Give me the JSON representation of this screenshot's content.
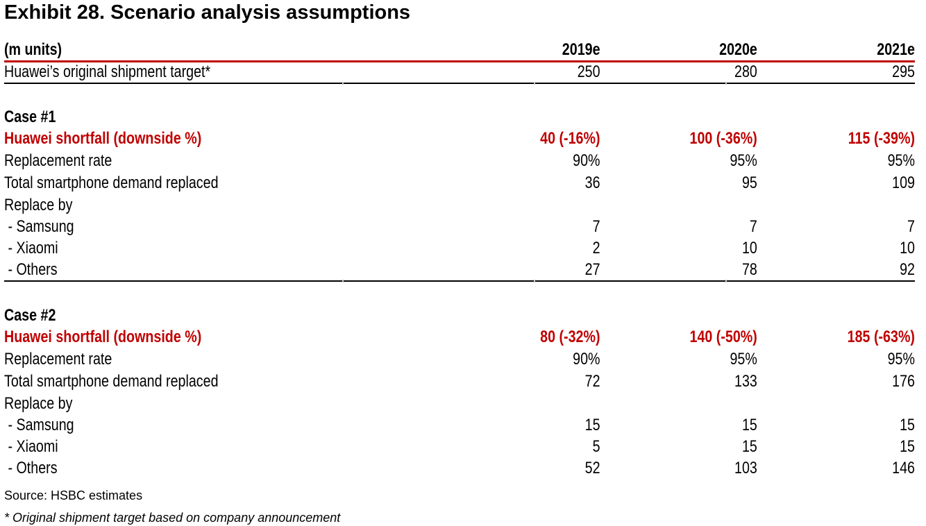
{
  "exhibit": {
    "title": "Exhibit 28. Scenario analysis assumptions"
  },
  "table": {
    "header": [
      "(m units)",
      "2019e",
      "2020e",
      "2021e"
    ],
    "target": [
      "Huawei’s original shipment target*",
      "250",
      "280",
      "295"
    ],
    "case1": {
      "heading": "Case #1",
      "rows": [
        [
          "Huawei shortfall (downside %)",
          "40 (-16%)",
          "100 (-36%)",
          "115 (-39%)"
        ],
        [
          "Replacement rate",
          "90%",
          "95%",
          "95%"
        ],
        [
          "Total smartphone demand replaced",
          "36",
          "95",
          "109"
        ],
        [
          "Replace by",
          "",
          "",
          ""
        ],
        [
          " - Samsung",
          "7",
          "7",
          "7"
        ],
        [
          " - Xiaomi",
          "2",
          "10",
          "10"
        ],
        [
          " - Others",
          "27",
          "78",
          "92"
        ]
      ]
    },
    "case2": {
      "heading": "Case #2",
      "rows": [
        [
          "Huawei shortfall (downside %)",
          "80 (-32%)",
          "140 (-50%)",
          "185 (-63%)"
        ],
        [
          "Replacement rate",
          "90%",
          "95%",
          "95%"
        ],
        [
          "Total smartphone demand replaced",
          "72",
          "133",
          "176"
        ],
        [
          "Replace by",
          "",
          "",
          ""
        ],
        [
          " - Samsung",
          "15",
          "15",
          "15"
        ],
        [
          " - Xiaomi",
          "5",
          "15",
          "15"
        ],
        [
          " - Others",
          "52",
          "103",
          "146"
        ]
      ]
    }
  },
  "source": "Source: HSBC estimates",
  "footnote": "* Original shipment target based on company announcement",
  "colors": {
    "accent_red": "#c00000",
    "text": "#000000",
    "rule": "#000000"
  }
}
